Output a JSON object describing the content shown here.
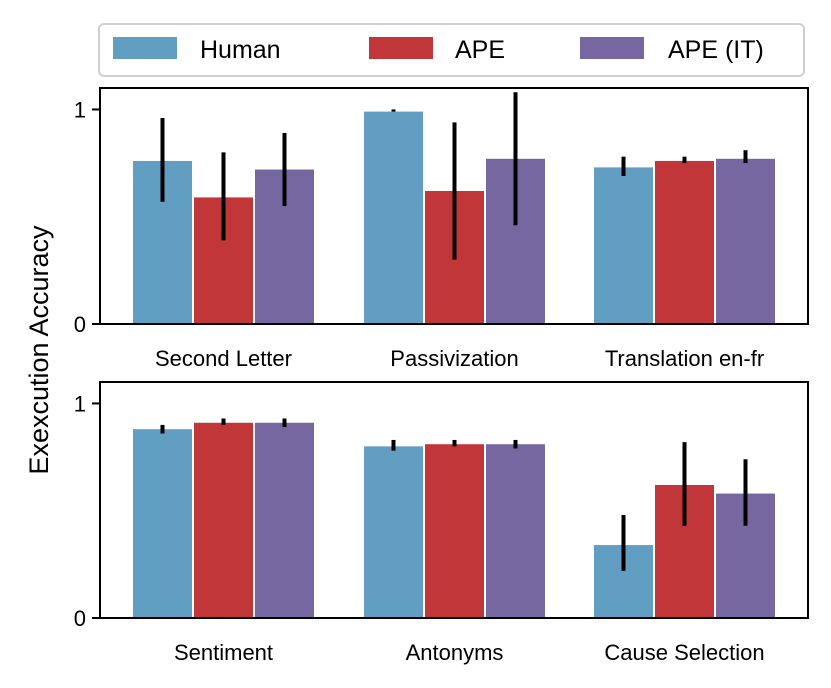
{
  "chart_data": [
    {
      "type": "bar",
      "panel": "top",
      "categories": [
        "Second Letter",
        "Passivization",
        "Translation en-fr"
      ],
      "series": [
        {
          "name": "Human",
          "values": [
            0.76,
            0.99,
            0.73
          ],
          "errors": [
            [
              0.57,
              0.96
            ],
            [
              0.99,
              1.0
            ],
            [
              0.69,
              0.78
            ]
          ]
        },
        {
          "name": "APE",
          "values": [
            0.59,
            0.62,
            0.76
          ],
          "errors": [
            [
              0.39,
              0.8
            ],
            [
              0.3,
              0.94
            ],
            [
              0.75,
              0.78
            ]
          ]
        },
        {
          "name": "APE (IT)",
          "values": [
            0.72,
            0.77,
            0.77
          ],
          "errors": [
            [
              0.55,
              0.89
            ],
            [
              0.46,
              1.08
            ],
            [
              0.75,
              0.81
            ]
          ]
        }
      ],
      "ylim": [
        0,
        1.1
      ],
      "yticks": [
        "0",
        "1"
      ],
      "xlabel": ""
    },
    {
      "type": "bar",
      "panel": "bottom",
      "categories": [
        "Sentiment",
        "Antonyms",
        "Cause Selection"
      ],
      "series": [
        {
          "name": "Human",
          "values": [
            0.88,
            0.8,
            0.34
          ],
          "errors": [
            [
              0.86,
              0.9
            ],
            [
              0.78,
              0.83
            ],
            [
              0.22,
              0.48
            ]
          ]
        },
        {
          "name": "APE",
          "values": [
            0.91,
            0.81,
            0.62
          ],
          "errors": [
            [
              0.9,
              0.93
            ],
            [
              0.8,
              0.83
            ],
            [
              0.43,
              0.82
            ]
          ]
        },
        {
          "name": "APE (IT)",
          "values": [
            0.91,
            0.81,
            0.58
          ],
          "errors": [
            [
              0.89,
              0.93
            ],
            [
              0.79,
              0.83
            ],
            [
              0.43,
              0.74
            ]
          ]
        }
      ],
      "ylim": [
        0,
        1.1
      ],
      "yticks": [
        "0",
        "1"
      ],
      "xlabel": ""
    }
  ],
  "ylabel": "Exexcution Accuracy",
  "legend": {
    "placement": "top",
    "items": [
      {
        "label": "Human",
        "color": "#629dc2"
      },
      {
        "label": "APE",
        "color": "#c13639"
      },
      {
        "label": "APE (IT)",
        "color": "#7667a0"
      }
    ]
  }
}
